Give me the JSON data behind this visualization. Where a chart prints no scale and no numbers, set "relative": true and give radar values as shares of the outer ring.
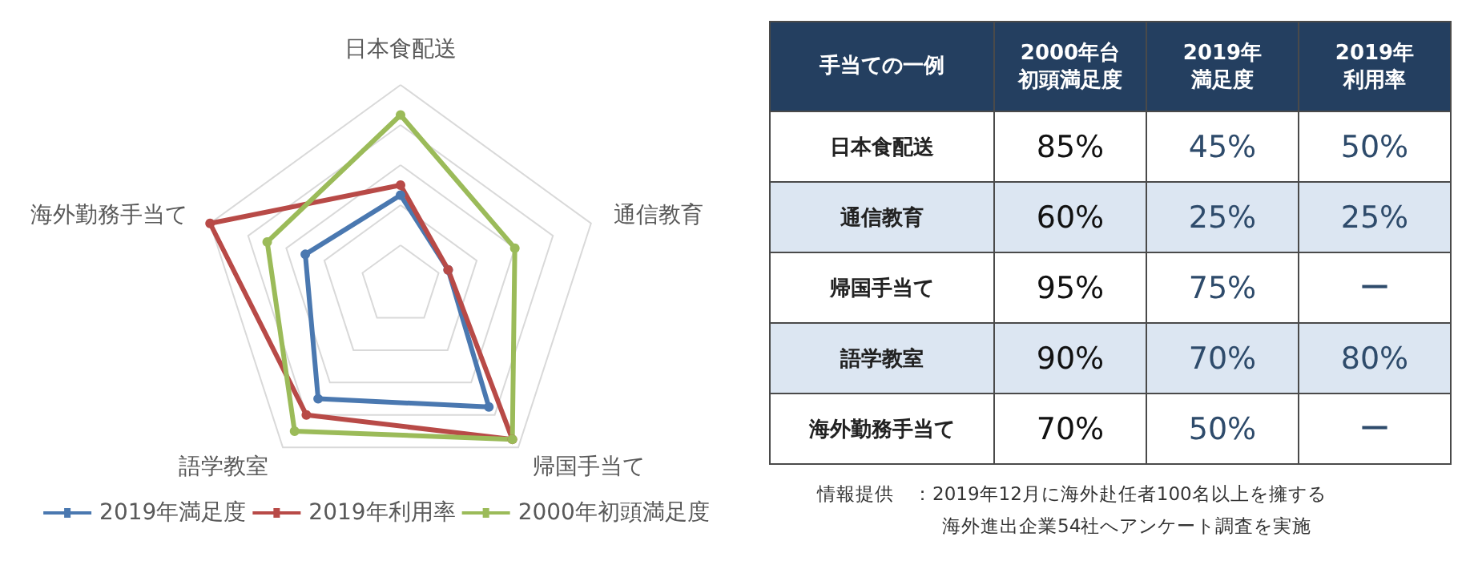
{
  "chart_data": [
    {
      "type": "radar",
      "relative": true,
      "categories": [
        "日本食配送",
        "通信教育",
        "帰国手当て",
        "語学教室",
        "海外勤務手当て"
      ],
      "legend": "bottom",
      "marker": "circle",
      "line_style": "solid",
      "series": [
        {
          "name": "2019年満足度",
          "color": "#4a78b0",
          "values": [
            0.45,
            0.25,
            0.75,
            0.7,
            0.5
          ]
        },
        {
          "name": "2019年利用率",
          "color": "#b84a47",
          "values": [
            0.5,
            0.25,
            0.95,
            0.8,
            1.0
          ]
        },
        {
          "name": "2000年初頭満足度",
          "color": "#9bbb59",
          "values": [
            0.85,
            0.6,
            0.95,
            0.9,
            0.7
          ]
        }
      ]
    },
    {
      "type": "other",
      "ylabel": "手当ての一例",
      "categories": [
        "2000年台初頭満足度",
        "2019年満足度",
        "2019年利用率"
      ],
      "y_categories": [
        "日本食配送",
        "通信教育",
        "帰国手当て",
        "語学教室",
        "海外勤務手当て"
      ],
      "cell_labels": [
        [
          "85%",
          "45%",
          "50%"
        ],
        [
          "60%",
          "25%",
          "25%"
        ],
        [
          "95%",
          "75%",
          "ー"
        ],
        [
          "90%",
          "70%",
          "80%"
        ],
        [
          "70%",
          "50%",
          "ー"
        ]
      ],
      "annotations": [
        "情報提供　：2019年12月に海外赴任者100名以上を擁する",
        "海外進出企業54社へアンケート調査を実施"
      ]
    }
  ]
}
